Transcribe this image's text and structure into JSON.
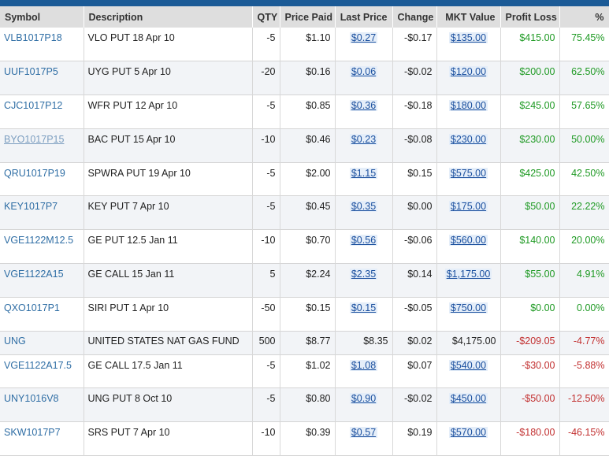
{
  "headers": {
    "symbol": "Symbol",
    "description": "Description",
    "qty": "QTY",
    "price_paid": "Price Paid",
    "last_price": "Last Price",
    "change": "Change",
    "mkt_value": "MKT Value",
    "profit_loss": "Profit Loss",
    "pct": "%"
  },
  "colors": {
    "header_bar": "#1b5a96",
    "link": "#2e6da4",
    "gain": "#1f9a24",
    "loss": "#c23030"
  },
  "rows": [
    {
      "symbol": "VLB1017P18",
      "description": "VLO PUT 18 Apr 10",
      "qty": "-5",
      "price_paid": "$1.10",
      "last_price": "$0.27",
      "change": "-$0.17",
      "mkt_value": "$135.00",
      "profit_loss": "$415.00",
      "pct": "75.45%"
    },
    {
      "symbol": "UUF1017P5",
      "description": "UYG PUT 5 Apr 10",
      "qty": "-20",
      "price_paid": "$0.16",
      "last_price": "$0.06",
      "change": "-$0.02",
      "mkt_value": "$120.00",
      "profit_loss": "$200.00",
      "pct": "62.50%"
    },
    {
      "symbol": "CJC1017P12",
      "description": "WFR PUT 12 Apr 10",
      "qty": "-5",
      "price_paid": "$0.85",
      "last_price": "$0.36",
      "change": "-$0.18",
      "mkt_value": "$180.00",
      "profit_loss": "$245.00",
      "pct": "57.65%"
    },
    {
      "symbol": "BYO1017P15",
      "description": "BAC PUT 15 Apr 10",
      "qty": "-10",
      "price_paid": "$0.46",
      "last_price": "$0.23",
      "change": "-$0.08",
      "mkt_value": "$230.00",
      "profit_loss": "$230.00",
      "pct": "50.00%"
    },
    {
      "symbol": "QRU1017P19",
      "description": "SPWRA PUT 19 Apr 10",
      "qty": "-5",
      "price_paid": "$2.00",
      "last_price": "$1.15",
      "change": "$0.15",
      "mkt_value": "$575.00",
      "profit_loss": "$425.00",
      "pct": "42.50%"
    },
    {
      "symbol": "KEY1017P7",
      "description": "KEY PUT 7 Apr 10",
      "qty": "-5",
      "price_paid": "$0.45",
      "last_price": "$0.35",
      "change": "$0.00",
      "mkt_value": "$175.00",
      "profit_loss": "$50.00",
      "pct": "22.22%"
    },
    {
      "symbol": "VGE1122M12.5",
      "description": "GE PUT 12.5 Jan 11",
      "qty": "-10",
      "price_paid": "$0.70",
      "last_price": "$0.56",
      "change": "-$0.06",
      "mkt_value": "$560.00",
      "profit_loss": "$140.00",
      "pct": "20.00%"
    },
    {
      "symbol": "VGE1122A15",
      "description": "GE CALL 15 Jan 11",
      "qty": "5",
      "price_paid": "$2.24",
      "last_price": "$2.35",
      "change": "$0.14",
      "mkt_value": "$1,175.00",
      "profit_loss": "$55.00",
      "pct": "4.91%"
    },
    {
      "symbol": "QXO1017P1",
      "description": "SIRI PUT 1 Apr 10",
      "qty": "-50",
      "price_paid": "$0.15",
      "last_price": "$0.15",
      "change": "-$0.05",
      "mkt_value": "$750.00",
      "profit_loss": "$0.00",
      "pct": "0.00%"
    },
    {
      "symbol": "UNG",
      "description": "UNITED STATES NAT GAS FUND",
      "qty": "500",
      "price_paid": "$8.77",
      "last_price": "$8.35",
      "change": "$0.02",
      "mkt_value": "$4,175.00",
      "profit_loss": "-$209.05",
      "pct": "-4.77%"
    },
    {
      "symbol": "VGE1122A17.5",
      "description": "GE CALL 17.5 Jan 11",
      "qty": "-5",
      "price_paid": "$1.02",
      "last_price": "$1.08",
      "change": "$0.07",
      "mkt_value": "$540.00",
      "profit_loss": "-$30.00",
      "pct": "-5.88%"
    },
    {
      "symbol": "UNY1016V8",
      "description": "UNG PUT 8 Oct 10",
      "qty": "-5",
      "price_paid": "$0.80",
      "last_price": "$0.90",
      "change": "-$0.02",
      "mkt_value": "$450.00",
      "profit_loss": "-$50.00",
      "pct": "-12.50%"
    },
    {
      "symbol": "SKW1017P7",
      "description": "SRS PUT 7 Apr 10",
      "qty": "-10",
      "price_paid": "$0.39",
      "last_price": "$0.57",
      "change": "$0.19",
      "mkt_value": "$570.00",
      "profit_loss": "-$180.00",
      "pct": "-46.15%"
    }
  ]
}
